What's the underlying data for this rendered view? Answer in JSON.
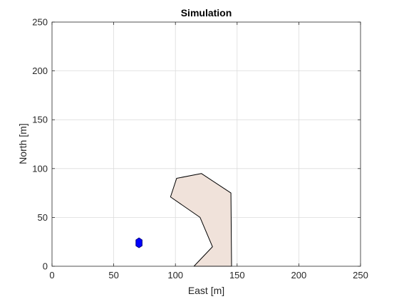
{
  "chart_data": {
    "type": "area",
    "title": "Simulation",
    "xlabel": "East [m]",
    "ylabel": "North [m]",
    "xlim": [
      0,
      250
    ],
    "ylim": [
      0,
      250
    ],
    "xticks": [
      0,
      50,
      100,
      150,
      200,
      250
    ],
    "yticks": [
      0,
      50,
      100,
      150,
      200,
      250
    ],
    "grid": true,
    "series": [
      {
        "type": "polygon",
        "fill": "#f0e2da",
        "stroke": "#000000",
        "points": [
          [
            115,
            0
          ],
          [
            130,
            20
          ],
          [
            120,
            50
          ],
          [
            96,
            71
          ],
          [
            101,
            90
          ],
          [
            121,
            95
          ],
          [
            145,
            75
          ],
          [
            145.5,
            0
          ]
        ]
      },
      {
        "type": "polygon",
        "fill": "#0000ff",
        "stroke": "#000080",
        "points": [
          [
            70.5,
            29
          ],
          [
            73,
            27
          ],
          [
            73,
            21
          ],
          [
            70.5,
            19
          ],
          [
            68,
            21
          ],
          [
            68,
            27
          ]
        ]
      }
    ]
  }
}
